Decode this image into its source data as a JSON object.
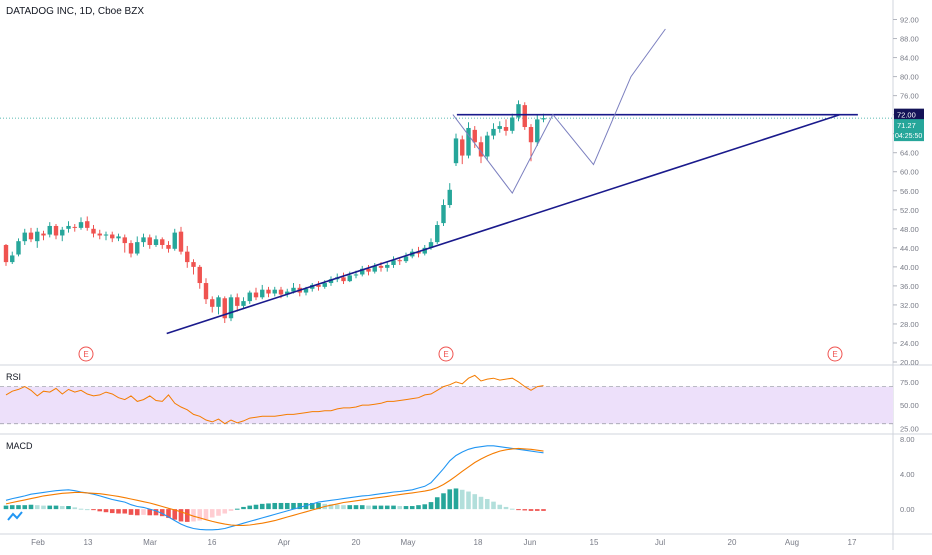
{
  "header": {
    "title": "DATADOG INC, 1D, Cboe BZX"
  },
  "panes": {
    "rsi_label": "RSI",
    "macd_label": "MACD"
  },
  "colors": {
    "up": "#26a69a",
    "down": "#ef5350",
    "trendline": "#1a1a8c",
    "projection": "#7b7fbf",
    "rsi": "#f57c00",
    "rsi_band": "#ede0fa",
    "macd": "#2196f3",
    "signal": "#f57c00",
    "hist_up_strong": "#26a69a",
    "hist_up_weak": "#b2dfdb",
    "hist_down_strong": "#ef5350",
    "hist_down_weak": "#ffcdd2",
    "price_tag_bg": "#131357",
    "current_tag_bg": "#26a69a",
    "earnings": "#ef5350"
  },
  "chart_data": [
    {
      "type": "candlestick",
      "title": "DATADOG INC, 1D, Cboe BZX",
      "ylim": [
        20,
        94
      ],
      "price_axis_ticks": [
        "92.00",
        "88.00",
        "84.00",
        "80.00",
        "76.00",
        "72.00",
        "68.00",
        "64.00",
        "60.00",
        "56.00",
        "52.00",
        "48.00",
        "44.00",
        "40.00",
        "36.00",
        "32.00",
        "28.00",
        "24.00",
        "20.00"
      ],
      "time_axis_ticks": [
        "Feb",
        "13",
        "Mar",
        "16",
        "Apr",
        "20",
        "May",
        "18",
        "Jun",
        "15",
        "Jul",
        "20",
        "Aug",
        "17"
      ],
      "earnings_markers": [
        "E",
        "E",
        "E"
      ],
      "price_tags": {
        "level": "72.00",
        "last": "71.27",
        "countdown": "04:25:50"
      },
      "candles": [
        [
          44.6,
          41.0,
          44.8,
          40.2
        ],
        [
          41.0,
          42.4,
          43.2,
          40.6
        ],
        [
          42.6,
          45.4,
          46.0,
          42.2
        ],
        [
          45.4,
          47.2,
          48.0,
          44.6
        ],
        [
          47.2,
          45.8,
          48.2,
          45.2
        ],
        [
          45.4,
          47.4,
          48.2,
          44.0
        ],
        [
          47.0,
          46.6,
          47.6,
          45.6
        ],
        [
          46.8,
          48.6,
          49.4,
          46.2
        ],
        [
          48.6,
          46.6,
          49.0,
          45.8
        ],
        [
          46.6,
          47.8,
          48.4,
          45.4
        ],
        [
          48.0,
          48.6,
          49.6,
          47.2
        ],
        [
          48.4,
          48.2,
          49.0,
          47.4
        ],
        [
          48.2,
          49.4,
          50.4,
          47.8
        ],
        [
          49.6,
          48.2,
          50.6,
          47.6
        ],
        [
          48.0,
          47.0,
          48.8,
          46.2
        ],
        [
          47.0,
          46.6,
          47.8,
          45.8
        ],
        [
          46.6,
          46.8,
          47.4,
          45.6
        ],
        [
          46.8,
          46.0,
          47.4,
          45.2
        ],
        [
          46.0,
          46.4,
          47.0,
          45.4
        ],
        [
          46.2,
          45.0,
          46.8,
          43.0
        ],
        [
          45.0,
          42.8,
          45.6,
          42.0
        ],
        [
          42.8,
          45.2,
          46.4,
          42.4
        ],
        [
          45.2,
          46.2,
          47.0,
          44.2
        ],
        [
          46.2,
          44.6,
          46.8,
          43.8
        ],
        [
          44.6,
          45.8,
          46.6,
          44.2
        ],
        [
          45.8,
          44.6,
          46.2,
          43.8
        ],
        [
          44.6,
          43.8,
          45.4,
          43.0
        ],
        [
          43.8,
          47.2,
          48.0,
          43.4
        ],
        [
          47.4,
          43.2,
          48.4,
          42.6
        ],
        [
          43.2,
          41.0,
          44.4,
          39.8
        ],
        [
          41.0,
          40.0,
          41.6,
          38.4
        ],
        [
          40.0,
          36.6,
          40.4,
          35.4
        ],
        [
          36.6,
          33.2,
          37.6,
          32.2
        ],
        [
          33.2,
          31.6,
          33.8,
          30.4
        ],
        [
          31.6,
          33.6,
          34.0,
          30.0
        ],
        [
          33.4,
          29.2,
          33.8,
          28.2
        ],
        [
          29.2,
          33.6,
          34.2,
          28.6
        ],
        [
          33.6,
          31.8,
          34.4,
          30.6
        ],
        [
          31.8,
          32.8,
          33.6,
          31.2
        ],
        [
          32.8,
          34.6,
          35.0,
          32.2
        ],
        [
          34.6,
          33.6,
          35.6,
          33.0
        ],
        [
          33.6,
          35.2,
          36.2,
          33.2
        ],
        [
          35.2,
          34.4,
          35.8,
          33.6
        ],
        [
          34.4,
          35.2,
          35.8,
          33.8
        ],
        [
          35.2,
          34.2,
          35.8,
          33.4
        ],
        [
          34.2,
          34.8,
          35.4,
          33.6
        ],
        [
          34.8,
          35.6,
          36.6,
          34.4
        ],
        [
          35.6,
          34.6,
          36.4,
          33.8
        ],
        [
          34.6,
          35.4,
          35.8,
          34.0
        ],
        [
          35.4,
          36.2,
          36.6,
          34.8
        ],
        [
          36.2,
          35.8,
          37.0,
          35.0
        ],
        [
          35.8,
          36.6,
          37.2,
          35.4
        ],
        [
          36.6,
          37.4,
          38.0,
          36.0
        ],
        [
          37.4,
          37.8,
          38.6,
          36.8
        ],
        [
          37.8,
          37.0,
          38.8,
          36.4
        ],
        [
          37.0,
          38.2,
          39.0,
          36.8
        ],
        [
          38.2,
          38.4,
          39.2,
          37.6
        ],
        [
          38.4,
          39.6,
          40.2,
          38.0
        ],
        [
          39.6,
          39.0,
          40.4,
          38.2
        ],
        [
          39.0,
          40.2,
          40.8,
          38.6
        ],
        [
          40.2,
          39.8,
          41.0,
          39.0
        ],
        [
          39.8,
          40.4,
          41.2,
          39.0
        ],
        [
          40.4,
          41.4,
          42.2,
          39.8
        ],
        [
          41.4,
          41.2,
          42.0,
          40.4
        ],
        [
          41.2,
          42.2,
          43.0,
          40.8
        ],
        [
          42.2,
          43.2,
          43.8,
          41.8
        ],
        [
          43.2,
          42.8,
          44.2,
          42.0
        ],
        [
          42.8,
          44.0,
          44.6,
          42.4
        ],
        [
          44.0,
          45.2,
          46.0,
          43.6
        ],
        [
          45.2,
          48.8,
          49.6,
          44.8
        ],
        [
          49.2,
          53.0,
          54.2,
          48.6
        ],
        [
          53.0,
          56.2,
          57.6,
          52.4
        ],
        [
          61.8,
          67.0,
          68.0,
          61.2
        ],
        [
          66.8,
          63.4,
          67.6,
          61.6
        ],
        [
          63.4,
          69.2,
          70.4,
          62.8
        ],
        [
          68.8,
          66.2,
          69.6,
          65.0
        ],
        [
          66.2,
          63.2,
          67.4,
          61.8
        ],
        [
          63.2,
          67.6,
          68.4,
          62.4
        ],
        [
          67.6,
          69.0,
          70.2,
          66.8
        ],
        [
          69.0,
          69.6,
          70.6,
          68.2
        ],
        [
          69.4,
          68.6,
          71.0,
          67.6
        ],
        [
          68.6,
          71.4,
          72.2,
          68.0
        ],
        [
          71.4,
          74.2,
          75.0,
          70.6
        ],
        [
          74.0,
          69.4,
          74.6,
          68.8
        ],
        [
          69.4,
          66.2,
          70.0,
          62.2
        ],
        [
          66.2,
          71.0,
          72.0,
          65.4
        ],
        [
          71.0,
          71.27,
          72.2,
          70.4
        ]
      ],
      "trendlines": [
        {
          "from": [
            "Mar 2",
            26.0
          ],
          "to": [
            "Aug 11",
            72.0
          ],
          "label": ""
        },
        {
          "from": [
            "May 11",
            72.0
          ],
          "to": [
            "Aug 15",
            72.0
          ],
          "label": ""
        }
      ],
      "projection_path": [
        [
          71.5,
          72.0
        ],
        [
          81.0,
          55.5
        ],
        [
          87.5,
          72.0
        ],
        [
          94.0,
          61.5
        ],
        [
          100.0,
          80.0
        ],
        [
          105.5,
          90.0
        ]
      ]
    },
    {
      "type": "line",
      "title": "RSI",
      "ylim": [
        20,
        90
      ],
      "y_ticks": [
        "75.00",
        "50.00",
        "25.00"
      ],
      "bands": [
        30,
        70
      ],
      "series": [
        {
          "values": [
            61,
            65,
            67,
            70,
            66,
            60,
            65,
            64,
            68,
            62,
            67,
            64,
            66,
            62,
            60,
            61,
            64,
            62,
            58,
            56,
            60,
            54,
            56,
            60,
            55,
            54,
            61,
            52,
            48,
            45,
            40,
            38,
            34,
            32,
            35,
            30,
            34,
            31,
            33,
            36,
            37,
            38,
            38,
            38,
            39,
            40,
            40,
            41,
            42,
            43,
            43,
            44,
            44,
            46,
            47,
            47,
            48,
            50,
            50,
            51,
            52,
            54,
            54,
            55,
            56,
            57,
            58,
            61,
            62,
            66,
            70,
            72,
            75,
            73,
            79,
            82,
            76,
            78,
            79,
            77,
            78,
            79,
            75,
            70,
            66,
            70,
            71
          ]
        }
      ]
    },
    {
      "type": "line",
      "title": "MACD",
      "ylim": [
        -2.6,
        8.2
      ],
      "y_ticks": [
        "8.00",
        "4.00",
        "0.00"
      ],
      "macd": [
        1.0,
        1.2,
        1.35,
        1.5,
        1.7,
        1.8,
        1.9,
        2.0,
        2.1,
        2.15,
        2.2,
        2.1,
        1.95,
        1.85,
        1.7,
        1.5,
        1.3,
        1.1,
        0.95,
        0.8,
        0.5,
        0.3,
        0.2,
        0.0,
        -0.2,
        -0.5,
        -0.9,
        -1.3,
        -1.7,
        -2.0,
        -2.2,
        -2.3,
        -2.35,
        -2.35,
        -2.3,
        -2.2,
        -2.0,
        -1.8,
        -1.6,
        -1.4,
        -1.2,
        -1.0,
        -0.8,
        -0.6,
        -0.4,
        -0.2,
        0.0,
        0.2,
        0.4,
        0.6,
        0.8,
        0.9,
        1.0,
        1.1,
        1.2,
        1.3,
        1.4,
        1.5,
        1.55,
        1.65,
        1.75,
        1.85,
        1.95,
        2.0,
        2.1,
        2.2,
        2.4,
        2.6,
        3.0,
        3.8,
        4.6,
        5.5,
        6.1,
        6.5,
        6.8,
        7.0,
        7.1,
        7.2,
        7.2,
        7.1,
        7.0,
        6.9,
        6.8,
        6.7,
        6.6,
        6.5,
        6.4
      ],
      "signal": [
        0.6,
        0.75,
        0.9,
        1.05,
        1.2,
        1.35,
        1.5,
        1.6,
        1.7,
        1.8,
        1.85,
        1.9,
        1.9,
        1.85,
        1.8,
        1.75,
        1.65,
        1.55,
        1.45,
        1.3,
        1.15,
        1.0,
        0.85,
        0.7,
        0.5,
        0.3,
        0.1,
        -0.1,
        -0.3,
        -0.55,
        -0.8,
        -1.0,
        -1.2,
        -1.4,
        -1.55,
        -1.7,
        -1.8,
        -1.85,
        -1.85,
        -1.8,
        -1.7,
        -1.6,
        -1.45,
        -1.3,
        -1.1,
        -0.9,
        -0.7,
        -0.5,
        -0.3,
        -0.1,
        0.1,
        0.3,
        0.45,
        0.6,
        0.75,
        0.85,
        0.95,
        1.05,
        1.15,
        1.25,
        1.35,
        1.45,
        1.55,
        1.65,
        1.75,
        1.85,
        1.95,
        2.05,
        2.2,
        2.45,
        2.8,
        3.25,
        3.75,
        4.3,
        4.8,
        5.3,
        5.7,
        6.05,
        6.35,
        6.6,
        6.75,
        6.85,
        6.9,
        6.85,
        6.8,
        6.7,
        6.6
      ],
      "histogram": [
        0.4,
        0.45,
        0.45,
        0.45,
        0.5,
        0.45,
        0.4,
        0.4,
        0.4,
        0.35,
        0.35,
        0.2,
        0.05,
        0.0,
        -0.1,
        -0.25,
        -0.35,
        -0.45,
        -0.5,
        -0.5,
        -0.65,
        -0.7,
        -0.65,
        -0.7,
        -0.7,
        -0.8,
        -1.0,
        -1.2,
        -1.4,
        -1.45,
        -1.4,
        -1.3,
        -1.15,
        -0.95,
        -0.75,
        -0.5,
        -0.2,
        0.05,
        0.25,
        0.4,
        0.5,
        0.6,
        0.65,
        0.7,
        0.7,
        0.7,
        0.7,
        0.7,
        0.7,
        0.7,
        0.7,
        0.6,
        0.55,
        0.5,
        0.45,
        0.45,
        0.45,
        0.45,
        0.4,
        0.4,
        0.4,
        0.4,
        0.4,
        0.35,
        0.35,
        0.35,
        0.45,
        0.55,
        0.8,
        1.35,
        1.8,
        2.25,
        2.35,
        2.2,
        2.0,
        1.7,
        1.4,
        1.15,
        0.85,
        0.5,
        0.25,
        0.05,
        -0.1,
        -0.15,
        -0.2,
        -0.2,
        -0.2
      ]
    }
  ]
}
